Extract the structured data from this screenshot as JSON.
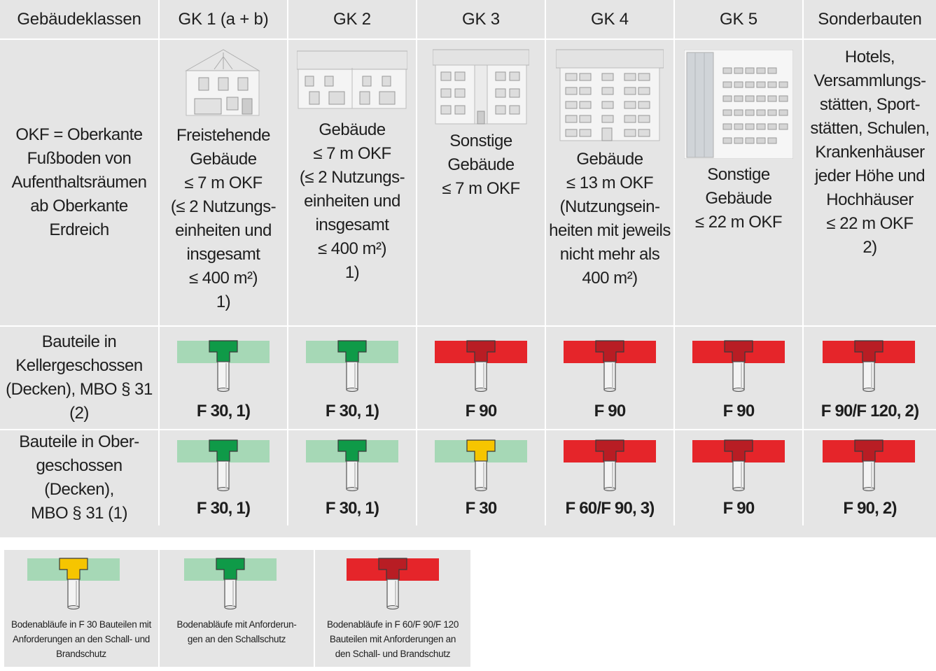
{
  "header": {
    "col0": "Gebäudeklassen",
    "columns": [
      "GK 1 (a + b)",
      "GK 2",
      "GK 3",
      "GK 4",
      "GK 5",
      "Sonderbauten"
    ]
  },
  "rows": {
    "definition_label": "OKF = Oberkante\nFußboden von\nAufenthaltsräumen\nab Oberkante\nErdreich",
    "basement_label": "Bauteile in\nKellergeschossen\n(Decken), MBO § 31 (2)",
    "upper_label": "Bauteile in Ober-\ngeschossen (Decken),\nMBO § 31 (1)"
  },
  "descriptions": [
    "Freistehende\nGebäude\n≤ 7 m OKF\n(≤ 2 Nutzungs-\neinheiten und\ninsgesamt\n≤ 400 m²)\n1)",
    "Gebäude\n≤ 7 m OKF\n(≤ 2 Nutzungs-\neinheiten und\ninsgesamt\n≤ 400 m²)\n1)",
    "Sonstige Gebäude\n≤ 7 m OKF",
    "Gebäude\n≤ 13 m OKF\n(Nutzungsein-\nheiten mit jeweils\nnicht mehr als\n400 m²)",
    "Sonstige\nGebäude\n≤ 22 m OKF",
    "Hotels,\nVersammlungs-\nstätten, Sport-\nstätten, Schulen,\nKrankenhäuser\njeder Höhe und\nHochhäuser\n≤ 22 m OKF\n2)"
  ],
  "building_icons": [
    "single-family-house-icon",
    "double-house-icon",
    "small-apartment-building-icon",
    "mid-rise-building-icon",
    "office-building-icon"
  ],
  "basement": {
    "values": [
      "F 30, 1)",
      "F 30, 1)",
      "F 90",
      "F 90",
      "F 90",
      "F 90/F 120, 2)"
    ],
    "colors": [
      "green",
      "green",
      "red",
      "red",
      "red",
      "red"
    ]
  },
  "upper": {
    "values": [
      "F 30, 1)",
      "F 30, 1)",
      "F 30",
      "F 60/F 90, 3)",
      "F 90",
      "F 90, 2)"
    ],
    "colors": [
      "green",
      "green",
      "yellow",
      "red",
      "red",
      "red"
    ]
  },
  "legend": [
    {
      "color": "yellow",
      "text": "Bodenabläufe in F 30 Bauteilen mit\nAnforderungen an den Schall- und\nBrandschutz"
    },
    {
      "color": "green",
      "text": "Bodenabläufe mit Anforderun-\ngen an den Schallschutz"
    },
    {
      "color": "red",
      "text": "Bodenabläufe in F 60/F 90/F 120\nBauteilen mit Anforderungen an\nden Schall- und Brandschutz"
    }
  ],
  "palette": {
    "green": {
      "slab": "#a6d8b6",
      "drain": "#0f9a48"
    },
    "yellow": {
      "slab": "#a6d8b6",
      "drain": "#f6c500"
    },
    "red": {
      "slab": "#e5252a",
      "drain": "#b81d24"
    },
    "grid_bg": "#e5e5e5"
  }
}
